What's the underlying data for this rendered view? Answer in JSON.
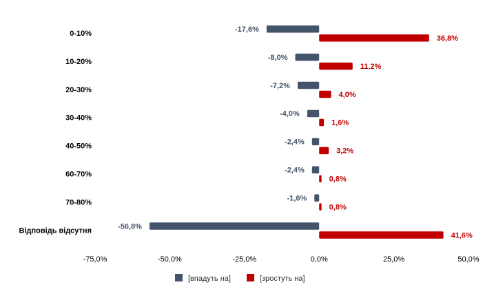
{
  "chart_data": {
    "type": "bar",
    "orientation": "horizontal",
    "categories": [
      "0-10%",
      "10-20%",
      "20-30%",
      "30-40%",
      "40-50%",
      "60-70%",
      "70-80%",
      "Відповідь відсутня"
    ],
    "series": [
      {
        "name": "[впадуть на]",
        "color": "#44546a",
        "values": [
          -17.6,
          -8.0,
          -7.2,
          -4.0,
          -2.4,
          -2.4,
          -1.6,
          -56.8
        ],
        "labels": [
          "-17,6%",
          "-8,0%",
          "-7,2%",
          "-4,0%",
          "-2,4%",
          "-2,4%",
          "-1,6%",
          "-56,8%"
        ]
      },
      {
        "name": "[зростуть на]",
        "color": "#c00000",
        "values": [
          36.8,
          11.2,
          4.0,
          1.6,
          3.2,
          0.8,
          0.8,
          41.6
        ],
        "labels": [
          "36,8%",
          "11,2%",
          "4,0%",
          "1,6%",
          "3,2%",
          "0,8%",
          "0,8%",
          "41,6%"
        ]
      }
    ],
    "xlim": [
      -75,
      50
    ],
    "xticks": [
      -75,
      -50,
      -25,
      0,
      25,
      50
    ],
    "xtick_labels": [
      "-75,0%",
      "-50,0%",
      "-25,0%",
      "0,0%",
      "25,0%",
      "50,0%"
    ],
    "grid": false,
    "legend": "bottom",
    "title": "",
    "xlabel": "",
    "ylabel": ""
  }
}
